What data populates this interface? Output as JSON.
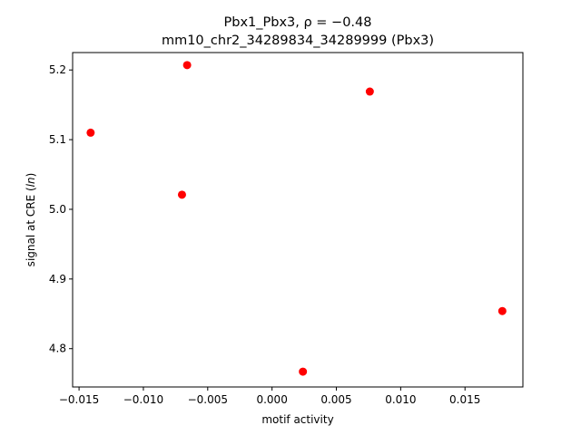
{
  "chart_data": {
    "type": "scatter",
    "title_line1": "Pbx1_Pbx3, ρ = −0.48",
    "title_line2": "mm10_chr2_34289834_34289999 (Pbx3)",
    "xlabel": "motif activity",
    "ylabel_prefix": "signal at CRE (",
    "ylabel_italic": "ln",
    "ylabel_suffix": ")",
    "xlim": [
      -0.0155,
      0.0195
    ],
    "ylim": [
      4.745,
      5.225
    ],
    "xticks": [
      {
        "value": -0.015,
        "label": "−0.015"
      },
      {
        "value": -0.01,
        "label": "−0.010"
      },
      {
        "value": -0.005,
        "label": "−0.005"
      },
      {
        "value": 0.0,
        "label": "0.000"
      },
      {
        "value": 0.005,
        "label": "0.005"
      },
      {
        "value": 0.01,
        "label": "0.010"
      },
      {
        "value": 0.015,
        "label": "0.015"
      }
    ],
    "yticks": [
      {
        "value": 4.8,
        "label": "4.8"
      },
      {
        "value": 4.9,
        "label": "4.9"
      },
      {
        "value": 5.0,
        "label": "5.0"
      },
      {
        "value": 5.1,
        "label": "5.1"
      },
      {
        "value": 5.2,
        "label": "5.2"
      }
    ],
    "grid": false,
    "marker_color": "#ff0000",
    "points": [
      {
        "x": -0.0141,
        "y": 5.11
      },
      {
        "x": -0.0066,
        "y": 5.207
      },
      {
        "x": -0.007,
        "y": 5.021
      },
      {
        "x": 0.0076,
        "y": 5.169
      },
      {
        "x": 0.0024,
        "y": 4.767
      },
      {
        "x": 0.0179,
        "y": 4.854
      }
    ]
  }
}
